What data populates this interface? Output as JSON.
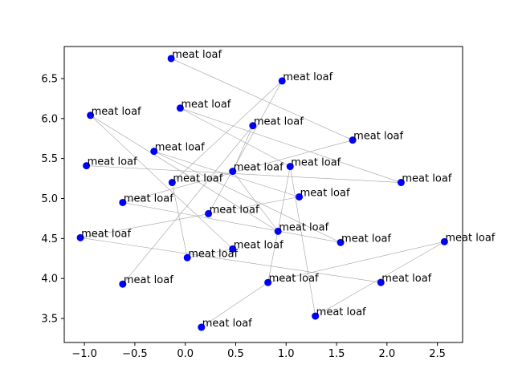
{
  "chart_data": {
    "type": "scatter",
    "title": "",
    "xlabel": "",
    "ylabel": "",
    "xlim": [
      -1.2,
      2.75
    ],
    "ylim": [
      3.2,
      6.9
    ],
    "xticks": [
      -1.0,
      -0.5,
      0.0,
      0.5,
      1.0,
      1.5,
      2.0,
      2.5
    ],
    "xtick_labels": [
      "−1.0",
      "−0.5",
      "0.0",
      "0.5",
      "1.0",
      "1.5",
      "2.0",
      "2.5"
    ],
    "yticks": [
      3.5,
      4.0,
      4.5,
      5.0,
      5.5,
      6.0,
      6.5
    ],
    "ytick_labels": [
      "3.5",
      "4.0",
      "4.5",
      "5.0",
      "5.5",
      "6.0",
      "6.5"
    ],
    "grid": false,
    "marker_color": "#0000ff",
    "line_color": "#a0a0a0",
    "points": [
      {
        "x": -0.14,
        "y": 6.75,
        "label": "meat loaf"
      },
      {
        "x": 0.96,
        "y": 6.47,
        "label": "meat loaf"
      },
      {
        "x": -0.94,
        "y": 6.04,
        "label": "meat loaf"
      },
      {
        "x": -0.05,
        "y": 6.13,
        "label": "meat loaf"
      },
      {
        "x": 0.67,
        "y": 5.91,
        "label": "meat loaf"
      },
      {
        "x": 1.66,
        "y": 5.73,
        "label": "meat loaf"
      },
      {
        "x": -0.31,
        "y": 5.59,
        "label": "meat loaf"
      },
      {
        "x": -0.98,
        "y": 5.41,
        "label": "meat loaf"
      },
      {
        "x": 0.47,
        "y": 5.34,
        "label": "meat loaf"
      },
      {
        "x": 1.04,
        "y": 5.4,
        "label": "meat loaf"
      },
      {
        "x": 2.14,
        "y": 5.2,
        "label": "meat loaf"
      },
      {
        "x": -0.13,
        "y": 5.2,
        "label": "meat loaf"
      },
      {
        "x": -0.62,
        "y": 4.95,
        "label": "meat loaf"
      },
      {
        "x": 1.13,
        "y": 5.02,
        "label": "meat loaf"
      },
      {
        "x": 0.23,
        "y": 4.81,
        "label": "meat loaf"
      },
      {
        "x": -1.04,
        "y": 4.51,
        "label": "meat loaf"
      },
      {
        "x": 0.92,
        "y": 4.59,
        "label": "meat loaf"
      },
      {
        "x": 1.54,
        "y": 4.45,
        "label": "meat loaf"
      },
      {
        "x": 2.57,
        "y": 4.46,
        "label": "meat loaf"
      },
      {
        "x": 0.47,
        "y": 4.37,
        "label": "meat loaf"
      },
      {
        "x": 0.02,
        "y": 4.26,
        "label": "meat loaf"
      },
      {
        "x": -0.62,
        "y": 3.93,
        "label": "meat loaf"
      },
      {
        "x": 0.82,
        "y": 3.95,
        "label": "meat loaf"
      },
      {
        "x": 1.94,
        "y": 3.95,
        "label": "meat loaf"
      },
      {
        "x": 1.29,
        "y": 3.53,
        "label": "meat loaf"
      },
      {
        "x": 0.16,
        "y": 3.39,
        "label": "meat loaf"
      }
    ],
    "connections": [
      [
        2,
        16
      ],
      [
        2,
        19
      ],
      [
        0,
        5
      ],
      [
        5,
        12
      ],
      [
        1,
        14
      ],
      [
        1,
        11
      ],
      [
        3,
        9
      ],
      [
        3,
        10
      ],
      [
        4,
        8
      ],
      [
        4,
        21
      ],
      [
        6,
        17
      ],
      [
        6,
        13
      ],
      [
        7,
        10
      ],
      [
        8,
        16
      ],
      [
        9,
        22
      ],
      [
        9,
        24
      ],
      [
        11,
        20
      ],
      [
        12,
        17
      ],
      [
        13,
        15
      ],
      [
        15,
        23
      ],
      [
        18,
        22
      ],
      [
        18,
        24
      ],
      [
        19,
        20
      ],
      [
        22,
        25
      ]
    ]
  }
}
